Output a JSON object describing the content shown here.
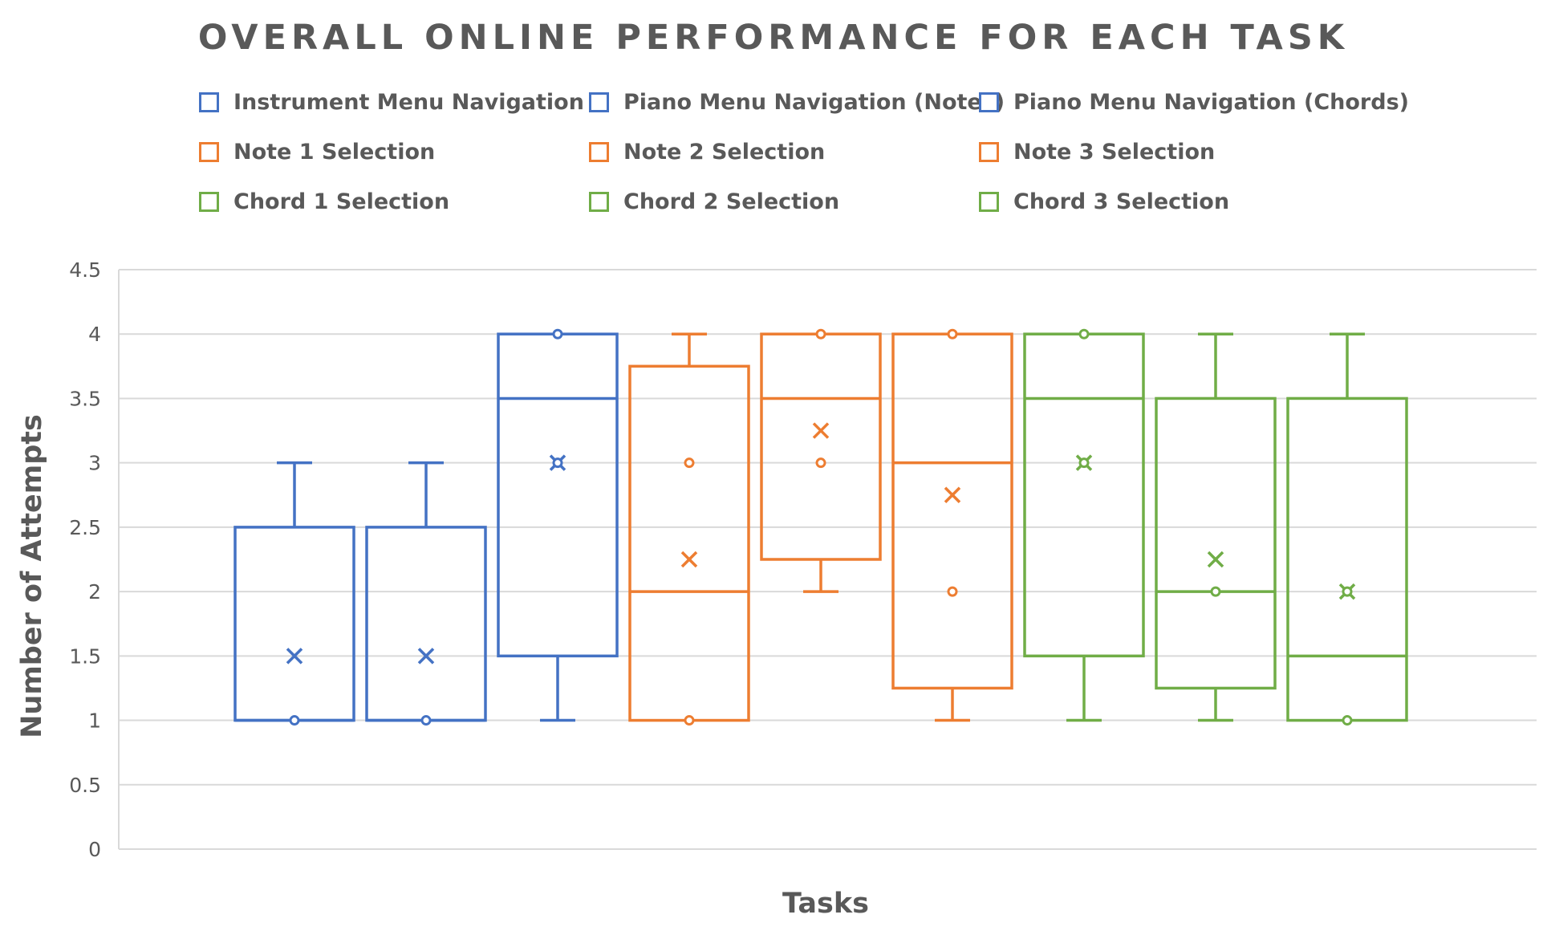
{
  "chart_data": {
    "type": "box",
    "title": "OVERALL ONLINE PERFORMANCE FOR EACH TASK",
    "xlabel": "Tasks",
    "ylabel": "Number of Attempts",
    "ylim": [
      0,
      4.5
    ],
    "yticks": [
      "0",
      "0.5",
      "1",
      "1.5",
      "2",
      "2.5",
      "3",
      "3.5",
      "4",
      "4.5"
    ],
    "grid": true,
    "legend_position": "top",
    "colors": {
      "blue": "#4472C4",
      "orange": "#ED7D31",
      "green": "#70AD47",
      "grid": "#D9D9D9",
      "text": "#595959"
    },
    "series": [
      {
        "name": "Instrument Menu Navigation",
        "color": "#4472C4",
        "min": 1,
        "q1": 1,
        "median": 1,
        "q3": 2.5,
        "max": 3,
        "mean": 1.5,
        "points": [
          1
        ]
      },
      {
        "name": "Piano Menu Navigation (Notes)",
        "color": "#4472C4",
        "min": 1,
        "q1": 1,
        "median": 1,
        "q3": 2.5,
        "max": 3,
        "mean": 1.5,
        "points": [
          1
        ]
      },
      {
        "name": "Piano Menu Navigation (Chords)",
        "color": "#4472C4",
        "min": 1,
        "q1": 1.5,
        "median": 3.5,
        "q3": 4,
        "max": 4,
        "mean": 3,
        "points": [
          4,
          3
        ]
      },
      {
        "name": "Note 1 Selection",
        "color": "#ED7D31",
        "min": 1,
        "q1": 1,
        "median": 2,
        "q3": 3.75,
        "max": 4,
        "mean": 2.25,
        "points": [
          3,
          1
        ]
      },
      {
        "name": "Note 2 Selection",
        "color": "#ED7D31",
        "min": 2,
        "q1": 2.25,
        "median": 3.5,
        "q3": 4,
        "max": 4,
        "mean": 3.25,
        "points": [
          4,
          3
        ]
      },
      {
        "name": "Note 3 Selection",
        "color": "#ED7D31",
        "min": 1,
        "q1": 1.25,
        "median": 3,
        "q3": 4,
        "max": 4,
        "mean": 2.75,
        "points": [
          4,
          2
        ]
      },
      {
        "name": "Chord 1 Selection",
        "color": "#70AD47",
        "min": 1,
        "q1": 1.5,
        "median": 3.5,
        "q3": 4,
        "max": 4,
        "mean": 3,
        "points": [
          4,
          3
        ]
      },
      {
        "name": "Chord 2 Selection",
        "color": "#70AD47",
        "min": 1,
        "q1": 1.25,
        "median": 2,
        "q3": 3.5,
        "max": 4,
        "mean": 2.25,
        "points": [
          2
        ]
      },
      {
        "name": "Chord 3 Selection",
        "color": "#70AD47",
        "min": 1,
        "q1": 1,
        "median": 1.5,
        "q3": 3.5,
        "max": 4,
        "mean": 2,
        "points": [
          2,
          1
        ]
      }
    ]
  }
}
